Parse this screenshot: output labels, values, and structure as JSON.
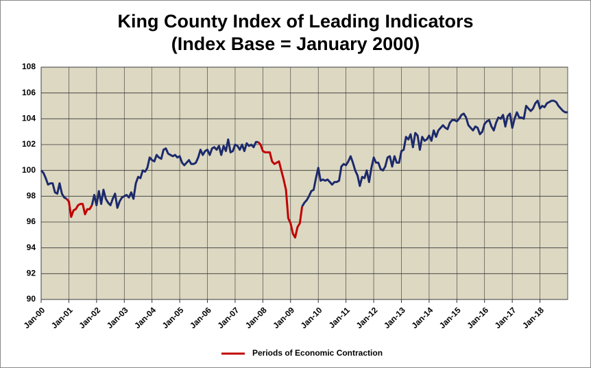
{
  "chart_data": {
    "type": "line",
    "title": "King County Index of Leading Indicators",
    "subtitle": "(Index Base = January 2000)",
    "categories": [
      "Jan-00",
      null,
      null,
      null,
      null,
      null,
      null,
      null,
      null,
      null,
      null,
      null,
      "Jan-01",
      null,
      null,
      null,
      null,
      null,
      null,
      null,
      null,
      null,
      null,
      null,
      "Jan-02",
      null,
      null,
      null,
      null,
      null,
      null,
      null,
      null,
      null,
      null,
      null,
      "Jan-03",
      null,
      null,
      null,
      null,
      null,
      null,
      null,
      null,
      null,
      null,
      null,
      "Jan-04",
      null,
      null,
      null,
      null,
      null,
      null,
      null,
      null,
      null,
      null,
      null,
      "Jan-05",
      null,
      null,
      null,
      null,
      null,
      null,
      null,
      null,
      null,
      null,
      null,
      "Jan-06",
      null,
      null,
      null,
      null,
      null,
      null,
      null,
      null,
      null,
      null,
      null,
      "Jan-07",
      null,
      null,
      null,
      null,
      null,
      null,
      null,
      null,
      null,
      null,
      null,
      "Jan-08",
      null,
      null,
      null,
      null,
      null,
      null,
      null,
      null,
      null,
      null,
      null,
      "Jan-09",
      null,
      null,
      null,
      null,
      null,
      null,
      null,
      null,
      null,
      null,
      null,
      "Jan-10",
      null,
      null,
      null,
      null,
      null,
      null,
      null,
      null,
      null,
      null,
      null,
      "Jan-11",
      null,
      null,
      null,
      null,
      null,
      null,
      null,
      null,
      null,
      null,
      null,
      "Jan-12",
      null,
      null,
      null,
      null,
      null,
      null,
      null,
      null,
      null,
      null,
      null,
      "Jan-13",
      null,
      null,
      null,
      null,
      null,
      null,
      null,
      null,
      null,
      null,
      null,
      "Jan-14",
      null,
      null,
      null,
      null,
      null,
      null,
      null,
      null,
      null,
      null,
      null,
      "Jan-15",
      null,
      null,
      null,
      null,
      null,
      null,
      null,
      null,
      null,
      null,
      null,
      "Jan-16",
      null,
      null,
      null,
      null,
      null,
      null,
      null,
      null,
      null,
      null,
      null,
      "Jan-17",
      null,
      null,
      null,
      null,
      null,
      null,
      null,
      null,
      null,
      null,
      null,
      "Jan-18",
      null,
      null,
      null,
      null,
      null,
      null,
      null,
      null,
      null,
      null,
      null,
      null
    ],
    "series": [
      {
        "color": "#1c2a6b",
        "values": [
          100.0,
          99.8,
          99.4,
          98.9,
          99.0,
          99.0,
          98.3,
          98.2,
          99.0,
          98.2,
          97.9,
          97.8,
          null,
          null,
          null,
          null,
          null,
          null,
          null,
          null,
          null,
          null,
          97.3,
          98.1,
          97.3,
          98.4,
          97.4,
          98.5,
          97.8,
          97.5,
          97.3,
          97.8,
          98.2,
          97.1,
          97.6,
          97.9,
          98.0,
          98.1,
          97.9,
          98.3,
          97.8,
          99.0,
          99.5,
          99.4,
          100.0,
          99.9,
          100.2,
          101.0,
          100.8,
          100.7,
          101.2,
          101.0,
          100.9,
          101.6,
          101.7,
          101.3,
          101.2,
          101.1,
          101.2,
          101.0,
          101.1,
          100.6,
          100.4,
          100.6,
          100.8,
          100.5,
          100.5,
          100.6,
          101.0,
          101.6,
          101.2,
          101.5,
          101.6,
          101.2,
          101.7,
          101.8,
          101.6,
          101.9,
          101.2,
          101.9,
          101.5,
          102.4,
          101.4,
          101.5,
          102.0,
          101.9,
          101.6,
          102.0,
          101.5,
          102.1,
          101.9,
          102.0,
          101.8,
          102.2,
          102.2,
          null,
          null,
          null,
          null,
          null,
          null,
          null,
          null,
          null,
          null,
          null,
          null,
          null,
          null,
          null,
          null,
          null,
          null,
          97.2,
          97.5,
          97.7,
          98.0,
          98.4,
          98.5,
          99.4,
          100.2,
          99.2,
          99.3,
          99.2,
          99.3,
          99.1,
          98.9,
          99.1,
          99.1,
          99.2,
          100.3,
          100.5,
          100.4,
          100.7,
          101.1,
          100.6,
          100.0,
          99.6,
          98.8,
          99.5,
          99.4,
          100.0,
          99.1,
          100.2,
          101.0,
          100.6,
          100.6,
          100.1,
          100.0,
          100.3,
          101.0,
          101.1,
          100.3,
          101.1,
          100.6,
          100.6,
          101.5,
          101.6,
          102.6,
          102.4,
          102.8,
          101.8,
          102.9,
          102.7,
          101.6,
          102.6,
          102.3,
          102.4,
          102.7,
          102.3,
          103.1,
          102.6,
          103.1,
          103.3,
          103.5,
          103.3,
          103.2,
          103.7,
          103.9,
          103.9,
          103.8,
          104.0,
          104.3,
          104.4,
          104.1,
          103.5,
          103.3,
          103.1,
          103.4,
          103.3,
          102.8,
          103.0,
          103.6,
          103.8,
          103.9,
          103.4,
          103.1,
          103.7,
          104.1,
          104.0,
          104.3,
          103.4,
          104.2,
          104.4,
          103.3,
          104.0,
          104.5,
          104.1,
          104.1,
          104.0,
          105.0,
          104.8,
          104.6,
          104.8,
          105.2,
          105.4,
          104.8,
          105.0,
          104.9,
          105.2,
          105.3,
          105.4,
          105.4,
          105.3,
          105.0,
          104.8,
          104.6,
          104.5,
          104.5
        ]
      },
      {
        "name": "Periods of Economic Contraction",
        "color": "#c00000",
        "values": [
          null,
          null,
          null,
          null,
          null,
          null,
          null,
          null,
          null,
          null,
          null,
          97.8,
          97.6,
          96.4,
          96.9,
          97.0,
          97.3,
          97.4,
          97.4,
          96.6,
          97.0,
          97.0,
          97.3,
          null,
          null,
          null,
          null,
          null,
          null,
          null,
          null,
          null,
          null,
          null,
          null,
          null,
          null,
          null,
          null,
          null,
          null,
          null,
          null,
          null,
          null,
          null,
          null,
          null,
          null,
          null,
          null,
          null,
          null,
          null,
          null,
          null,
          null,
          null,
          null,
          null,
          null,
          null,
          null,
          null,
          null,
          null,
          null,
          null,
          null,
          null,
          null,
          null,
          null,
          null,
          null,
          null,
          null,
          null,
          null,
          null,
          null,
          null,
          null,
          null,
          null,
          null,
          null,
          null,
          null,
          null,
          null,
          null,
          null,
          null,
          102.2,
          102.0,
          101.5,
          101.4,
          101.4,
          101.4,
          100.7,
          100.5,
          100.6,
          100.7,
          100.0,
          99.3,
          98.5,
          96.3,
          95.9,
          95.1,
          94.8,
          95.6,
          95.9,
          97.2,
          null,
          null,
          null,
          null,
          null,
          null,
          null,
          null,
          null,
          null,
          null,
          null,
          null,
          null,
          null,
          null,
          null,
          null,
          null,
          null,
          null,
          null,
          null,
          null,
          null,
          null,
          null,
          null,
          null,
          null,
          null,
          null,
          null,
          null,
          null,
          null,
          null,
          null,
          null,
          null,
          null,
          null,
          null,
          null,
          null,
          null,
          null,
          null,
          null,
          null,
          null,
          null,
          null,
          null,
          null,
          null,
          null,
          null,
          null,
          null,
          null,
          null,
          null,
          null,
          null,
          null,
          null,
          null,
          null,
          null,
          null,
          null,
          null,
          null,
          null,
          null,
          null,
          null,
          null,
          null,
          null,
          null,
          null,
          null,
          null,
          null,
          null,
          null,
          null,
          null,
          null,
          null,
          null,
          null,
          null,
          null,
          null,
          null,
          null,
          null,
          null,
          null,
          null,
          null,
          null,
          null,
          null,
          null,
          null,
          null,
          null,
          null,
          null,
          null,
          null
        ]
      }
    ],
    "ylim": [
      90,
      108
    ],
    "yticks": [
      90,
      92,
      94,
      96,
      98,
      100,
      102,
      104,
      106,
      108
    ],
    "grid": true,
    "legend": "bottom",
    "plot_background": "#ddd8c2"
  }
}
